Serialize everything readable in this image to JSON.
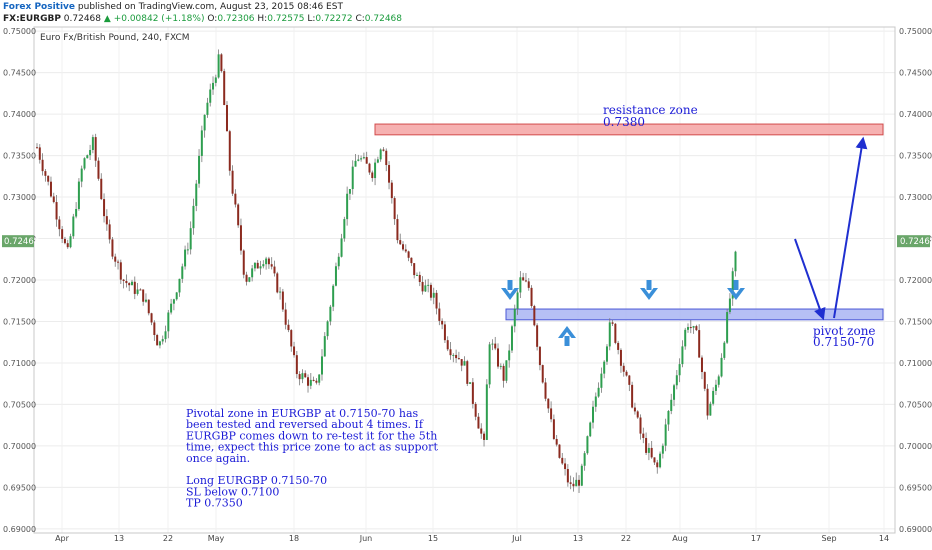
{
  "header": {
    "publisher": "Forex Positive",
    "published_text": "published on TradingView.com, August 23, 2015 08:46 EST",
    "symbol": "FX:EURGBP",
    "last": "0.72468",
    "arrow": "▲",
    "change": "+0.00842 (+1.18%)",
    "o_label": "O:",
    "o_value": "0.72306",
    "h_label": "H:",
    "h_value": "0.72575",
    "l_label": "L:",
    "l_value": "0.72272",
    "c_label": "C:",
    "c_value": "0.72468"
  },
  "colors": {
    "up": "#2e9e4f",
    "down": "#8b2a1f",
    "wick": "#777777",
    "resistance_fill": "#f4a3a3",
    "resistance_stroke": "#d24b4b",
    "pivot_fill": "#a9b5f3",
    "pivot_stroke": "#4b57d6",
    "annotation": "#1b1bd6",
    "drawn_arrow": "#1f2fd0",
    "marker_arrow": "#3a8fd9",
    "price_tag": "#6aa66a"
  },
  "chart_data": {
    "type": "candlestick",
    "title": "Euro Fx/British Pound, 240, FXCM",
    "ylim": [
      0.6895,
      0.7505
    ],
    "y_ticks": [
      "0.75000",
      "0.74500",
      "0.74000",
      "0.73500",
      "0.73000",
      "0.72500",
      "0.72000",
      "0.71500",
      "0.71000",
      "0.70500",
      "0.70000",
      "0.69500",
      "0.69000"
    ],
    "x_ticks": [
      "Apr",
      "13",
      "22",
      "May",
      "18",
      "Jun",
      "15",
      "Jul",
      "13",
      "22",
      "Aug",
      "17",
      "Sep",
      "14"
    ],
    "last_price_label": "0.72468",
    "price_path": [
      {
        "d": 0,
        "p": 0.736
      },
      {
        "d": 3,
        "p": 0.73
      },
      {
        "d": 6,
        "p": 0.723
      },
      {
        "d": 9,
        "p": 0.734
      },
      {
        "d": 11,
        "p": 0.7365
      },
      {
        "d": 14,
        "p": 0.725
      },
      {
        "d": 17,
        "p": 0.72
      },
      {
        "d": 21,
        "p": 0.718
      },
      {
        "d": 24,
        "p": 0.712
      },
      {
        "d": 27,
        "p": 0.718
      },
      {
        "d": 30,
        "p": 0.725
      },
      {
        "d": 33,
        "p": 0.74
      },
      {
        "d": 36,
        "p": 0.747
      },
      {
        "d": 38,
        "p": 0.733
      },
      {
        "d": 41,
        "p": 0.72
      },
      {
        "d": 45,
        "p": 0.723
      },
      {
        "d": 48,
        "p": 0.718
      },
      {
        "d": 51,
        "p": 0.709
      },
      {
        "d": 55,
        "p": 0.707
      },
      {
        "d": 58,
        "p": 0.718
      },
      {
        "d": 61,
        "p": 0.73
      },
      {
        "d": 63,
        "p": 0.735
      },
      {
        "d": 66,
        "p": 0.733
      },
      {
        "d": 68,
        "p": 0.737
      },
      {
        "d": 71,
        "p": 0.725
      },
      {
        "d": 75,
        "p": 0.72
      },
      {
        "d": 78,
        "p": 0.718
      },
      {
        "d": 81,
        "p": 0.712
      },
      {
        "d": 84,
        "p": 0.71
      },
      {
        "d": 86,
        "p": 0.705
      },
      {
        "d": 88,
        "p": 0.7
      },
      {
        "d": 89,
        "p": 0.713
      },
      {
        "d": 92,
        "p": 0.708
      },
      {
        "d": 95,
        "p": 0.72
      },
      {
        "d": 97,
        "p": 0.719
      },
      {
        "d": 99,
        "p": 0.71
      },
      {
        "d": 102,
        "p": 0.7
      },
      {
        "d": 105,
        "p": 0.695
      },
      {
        "d": 107,
        "p": 0.696
      },
      {
        "d": 110,
        "p": 0.706
      },
      {
        "d": 113,
        "p": 0.715
      },
      {
        "d": 116,
        "p": 0.708
      },
      {
        "d": 119,
        "p": 0.701
      },
      {
        "d": 122,
        "p": 0.697
      },
      {
        "d": 125,
        "p": 0.706
      },
      {
        "d": 128,
        "p": 0.715
      },
      {
        "d": 130,
        "p": 0.713
      },
      {
        "d": 132,
        "p": 0.704
      },
      {
        "d": 134,
        "p": 0.708
      },
      {
        "d": 136,
        "p": 0.716
      },
      {
        "d": 138,
        "p": 0.725
      }
    ],
    "zones": [
      {
        "label": "resistance zone",
        "value": "0.7380",
        "from": 0.7375,
        "to": 0.7388,
        "d_start": 62,
        "d_end": 178
      },
      {
        "label": "pivot zone",
        "value": "0.7150-70",
        "from": 0.7152,
        "to": 0.7165,
        "d_start": 85,
        "d_end": 178
      }
    ],
    "projection": [
      {
        "d": 139,
        "p": 0.7255
      },
      {
        "d": 146,
        "p": 0.7155
      },
      {
        "d": 152,
        "p": 0.7375
      }
    ],
    "bounce_markers": [
      {
        "dir": "down",
        "d": 86
      },
      {
        "dir": "up",
        "d": 97
      },
      {
        "dir": "down",
        "d": 112
      },
      {
        "dir": "down",
        "d": 128
      }
    ]
  },
  "annotations": {
    "resistance_title": "resistance zone",
    "resistance_value": "0.7380",
    "pivot_title": "pivot zone",
    "pivot_value": "0.7150-70",
    "note_lines": [
      "Pivotal zone in EURGBP at 0.7150-70 has",
      "been tested and reversed about 4 times. If",
      "EURGBP comes down to re-test it for the 5th",
      "time, expect this price zone to act as support",
      "once again.",
      "",
      "Long EURGBP 0.7150-70",
      "SL below 0.7100",
      "TP 0.7350"
    ]
  }
}
